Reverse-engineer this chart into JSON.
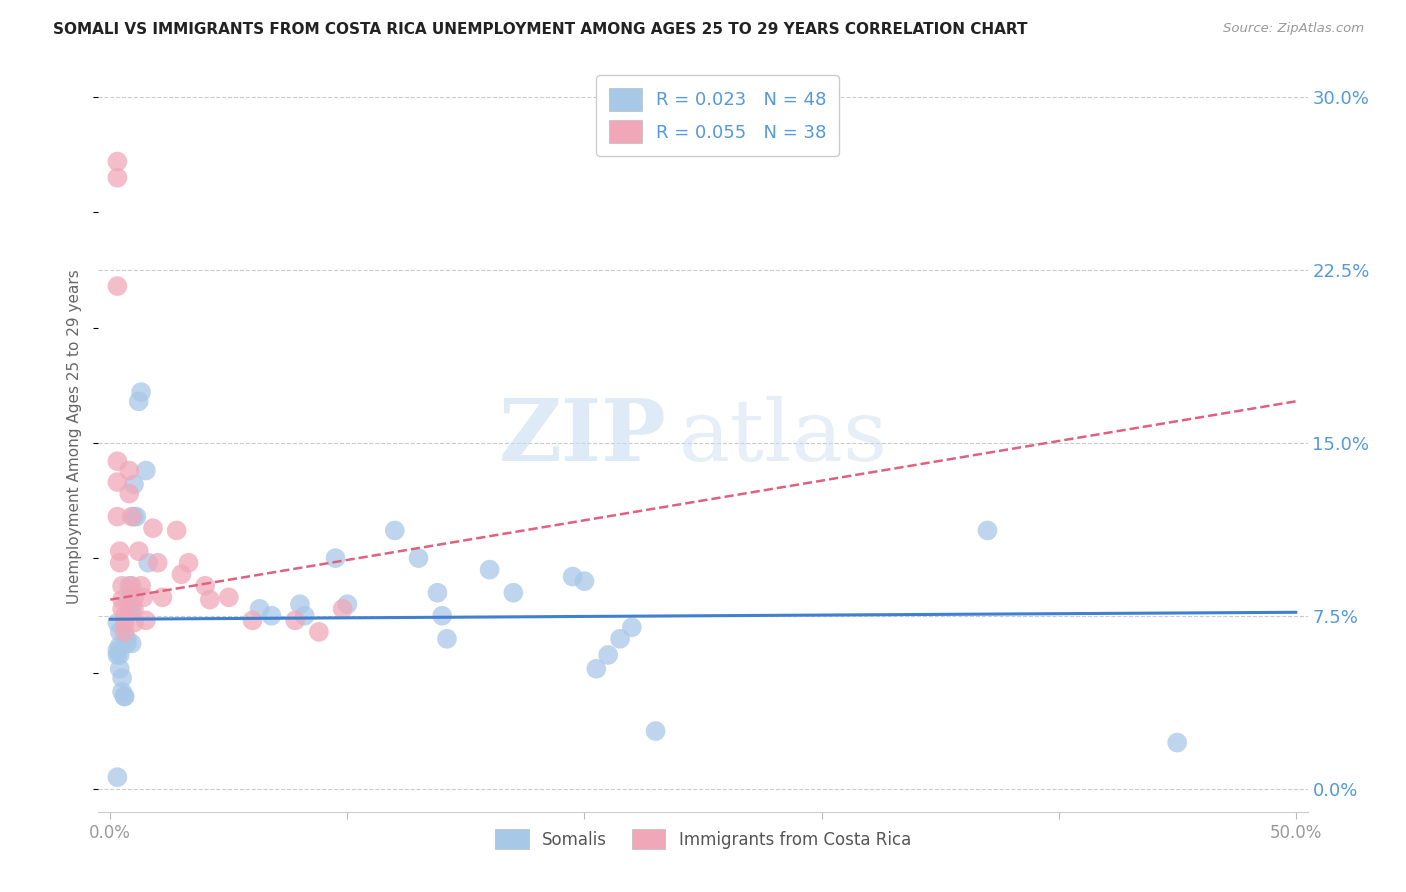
{
  "title": "SOMALI VS IMMIGRANTS FROM COSTA RICA UNEMPLOYMENT AMONG AGES 25 TO 29 YEARS CORRELATION CHART",
  "source": "Source: ZipAtlas.com",
  "xlabel_ticks": [
    "0.0%",
    "",
    "",
    "",
    "",
    "50.0%"
  ],
  "xlabel_vals": [
    0.0,
    0.1,
    0.2,
    0.3,
    0.4,
    0.5
  ],
  "ylabel": "Unemployment Among Ages 25 to 29 years",
  "ylabel_ticks": [
    "30.0%",
    "22.5%",
    "15.0%",
    "7.5%",
    "0.0%"
  ],
  "ylabel_vals": [
    0.3,
    0.225,
    0.15,
    0.075,
    0.0
  ],
  "xlim": [
    -0.005,
    0.505
  ],
  "ylim": [
    -0.01,
    0.315
  ],
  "legend1_label": "R = 0.023   N = 48",
  "legend2_label": "R = 0.055   N = 38",
  "somali_color": "#a8c8e8",
  "costarica_color": "#f0a8b8",
  "somali_line_color": "#4080d0",
  "costarica_line_color": "#e06080",
  "somali_x": [
    0.003,
    0.003,
    0.003,
    0.004,
    0.004,
    0.004,
    0.004,
    0.005,
    0.005,
    0.006,
    0.006,
    0.007,
    0.007,
    0.008,
    0.008,
    0.008,
    0.009,
    0.009,
    0.01,
    0.01,
    0.011,
    0.012,
    0.013,
    0.015,
    0.016,
    0.063,
    0.068,
    0.08,
    0.082,
    0.095,
    0.1,
    0.12,
    0.13,
    0.138,
    0.14,
    0.142,
    0.16,
    0.17,
    0.195,
    0.2,
    0.205,
    0.21,
    0.215,
    0.22,
    0.23,
    0.37,
    0.45,
    0.003
  ],
  "somali_y": [
    0.06,
    0.058,
    0.072,
    0.068,
    0.062,
    0.058,
    0.052,
    0.048,
    0.042,
    0.04,
    0.04,
    0.063,
    0.065,
    0.078,
    0.088,
    0.082,
    0.063,
    0.078,
    0.118,
    0.132,
    0.118,
    0.168,
    0.172,
    0.138,
    0.098,
    0.078,
    0.075,
    0.08,
    0.075,
    0.1,
    0.08,
    0.112,
    0.1,
    0.085,
    0.075,
    0.065,
    0.095,
    0.085,
    0.092,
    0.09,
    0.052,
    0.058,
    0.065,
    0.07,
    0.025,
    0.112,
    0.02,
    0.005
  ],
  "costarica_x": [
    0.003,
    0.003,
    0.003,
    0.003,
    0.003,
    0.003,
    0.004,
    0.004,
    0.005,
    0.005,
    0.005,
    0.006,
    0.006,
    0.006,
    0.008,
    0.008,
    0.009,
    0.009,
    0.01,
    0.01,
    0.01,
    0.012,
    0.013,
    0.014,
    0.015,
    0.018,
    0.02,
    0.022,
    0.028,
    0.03,
    0.033,
    0.04,
    0.042,
    0.05,
    0.06,
    0.078,
    0.088,
    0.098
  ],
  "costarica_y": [
    0.272,
    0.265,
    0.218,
    0.142,
    0.133,
    0.118,
    0.103,
    0.098,
    0.088,
    0.082,
    0.078,
    0.075,
    0.072,
    0.068,
    0.138,
    0.128,
    0.118,
    0.088,
    0.083,
    0.078,
    0.072,
    0.103,
    0.088,
    0.083,
    0.073,
    0.113,
    0.098,
    0.083,
    0.112,
    0.093,
    0.098,
    0.088,
    0.082,
    0.083,
    0.073,
    0.073,
    0.068,
    0.078
  ],
  "somali_trend": [
    0.0,
    0.5,
    0.0735,
    0.0765
  ],
  "costarica_trend": [
    0.0,
    0.5,
    0.082,
    0.168
  ],
  "watermark_zip": "ZIP",
  "watermark_atlas": "atlas",
  "bg_color": "#ffffff",
  "grid_color": "#cccccc",
  "title_color": "#222222",
  "source_color": "#999999",
  "ylabel_color": "#666666",
  "tick_label_color": "#999999",
  "right_axis_color": "#5599dd"
}
